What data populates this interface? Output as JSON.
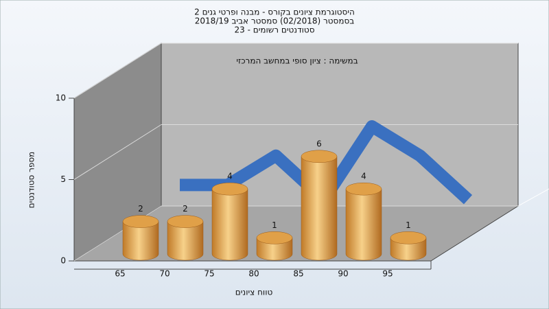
{
  "chart_data": {
    "type": "bar",
    "title": [
      "היסטוגרמת ציונים בקורס - מבנה ופרטי גנים 2",
      "בסמסטר  (02/2018)  סמסטר אביב 2018/19",
      "סטודנטים רשומים - 23"
    ],
    "subtitle": "במשימה : ציון סופי במחשב המרכזי",
    "x_label": "טווח ציונים",
    "y_label": "מספר סטודנטים",
    "categories": [
      "65",
      "70",
      "75",
      "80",
      "85",
      "90",
      "95"
    ],
    "values": [
      2,
      2,
      4,
      1,
      6,
      4,
      1
    ],
    "color": "#e0a048",
    "line_color": "#3a70c0",
    "ylim": [
      0,
      10
    ],
    "yticks": [
      0,
      5,
      10
    ],
    "grid": true
  }
}
